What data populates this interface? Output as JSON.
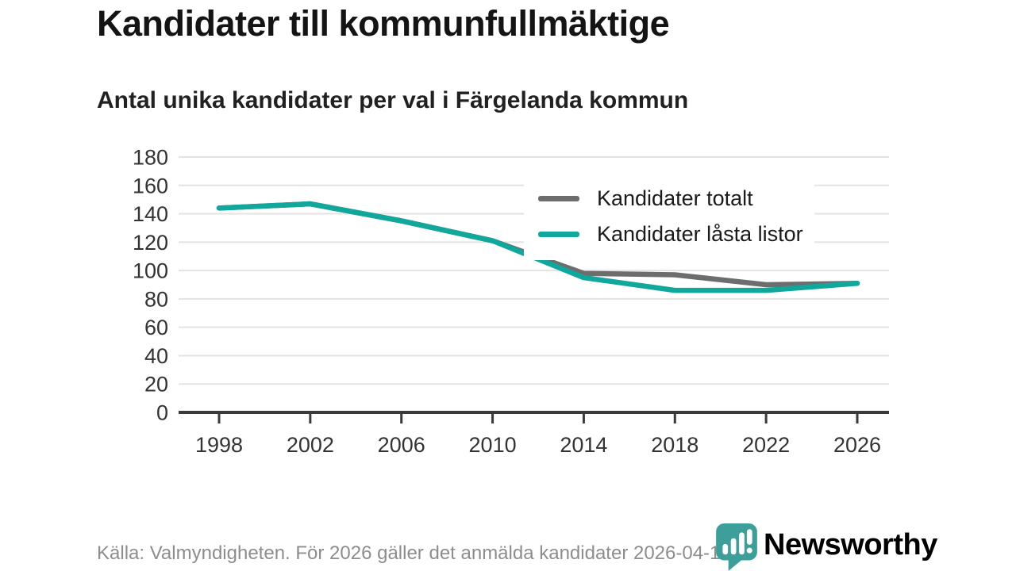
{
  "header": {
    "title": "Kandidater till kommunfullmäktige",
    "subtitle": "Antal unika kandidater per val i Färgelanda kommun"
  },
  "chart_data": {
    "type": "line",
    "title": "Kandidater till kommunfullmäktige",
    "subtitle": "Antal unika kandidater per val i Färgelanda kommun",
    "x": [
      1998,
      2002,
      2006,
      2010,
      2014,
      2018,
      2022,
      2026
    ],
    "series": [
      {
        "name": "Kandidater totalt",
        "color": "#6d6d6d",
        "values": [
          144,
          147,
          135,
          121,
          98,
          97,
          90,
          91
        ]
      },
      {
        "name": "Kandidater låsta listor",
        "color": "#10a79c",
        "values": [
          144,
          147,
          135,
          121,
          95,
          86,
          86,
          91
        ]
      }
    ],
    "ylim": [
      0,
      180
    ],
    "yticks": [
      0,
      20,
      40,
      60,
      80,
      100,
      120,
      140,
      160,
      180
    ],
    "grid": true,
    "legend_position": "top-right-inside"
  },
  "footer": {
    "source": "Källa: Valmyndigheten. För 2026 gäller det anmälda kandidater 2026-04-10."
  },
  "branding": {
    "wordmark": "Newsworthy"
  },
  "colors": {
    "teal": "#10a79c",
    "gray": "#6d6d6d",
    "logo_teal": "#3d9f99",
    "grid": "#e3e3e3",
    "axis": "#3a3a3a",
    "tick_text": "#333333",
    "text": "#1a1a1a",
    "muted": "#8d8d8d"
  }
}
